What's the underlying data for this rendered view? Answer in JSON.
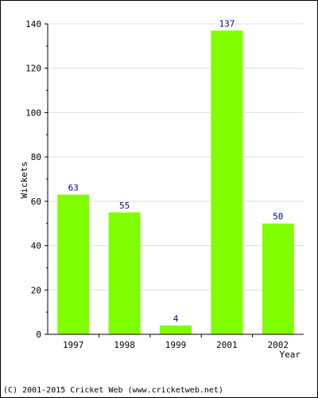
{
  "chart_data": {
    "type": "bar",
    "categories": [
      "1997",
      "1998",
      "1999",
      "2001",
      "2002"
    ],
    "values": [
      63,
      55,
      4,
      137,
      50
    ],
    "xlabel": "Year",
    "ylabel": "Wickets",
    "ylim": [
      0,
      140
    ],
    "yticks": [
      0,
      20,
      40,
      60,
      80,
      100,
      120,
      140
    ],
    "grid": true,
    "bar_color": "#80ff00",
    "label_color": "#000080"
  },
  "footer": {
    "text": "(C) 2001-2015 Cricket Web (www.cricketweb.net)"
  }
}
